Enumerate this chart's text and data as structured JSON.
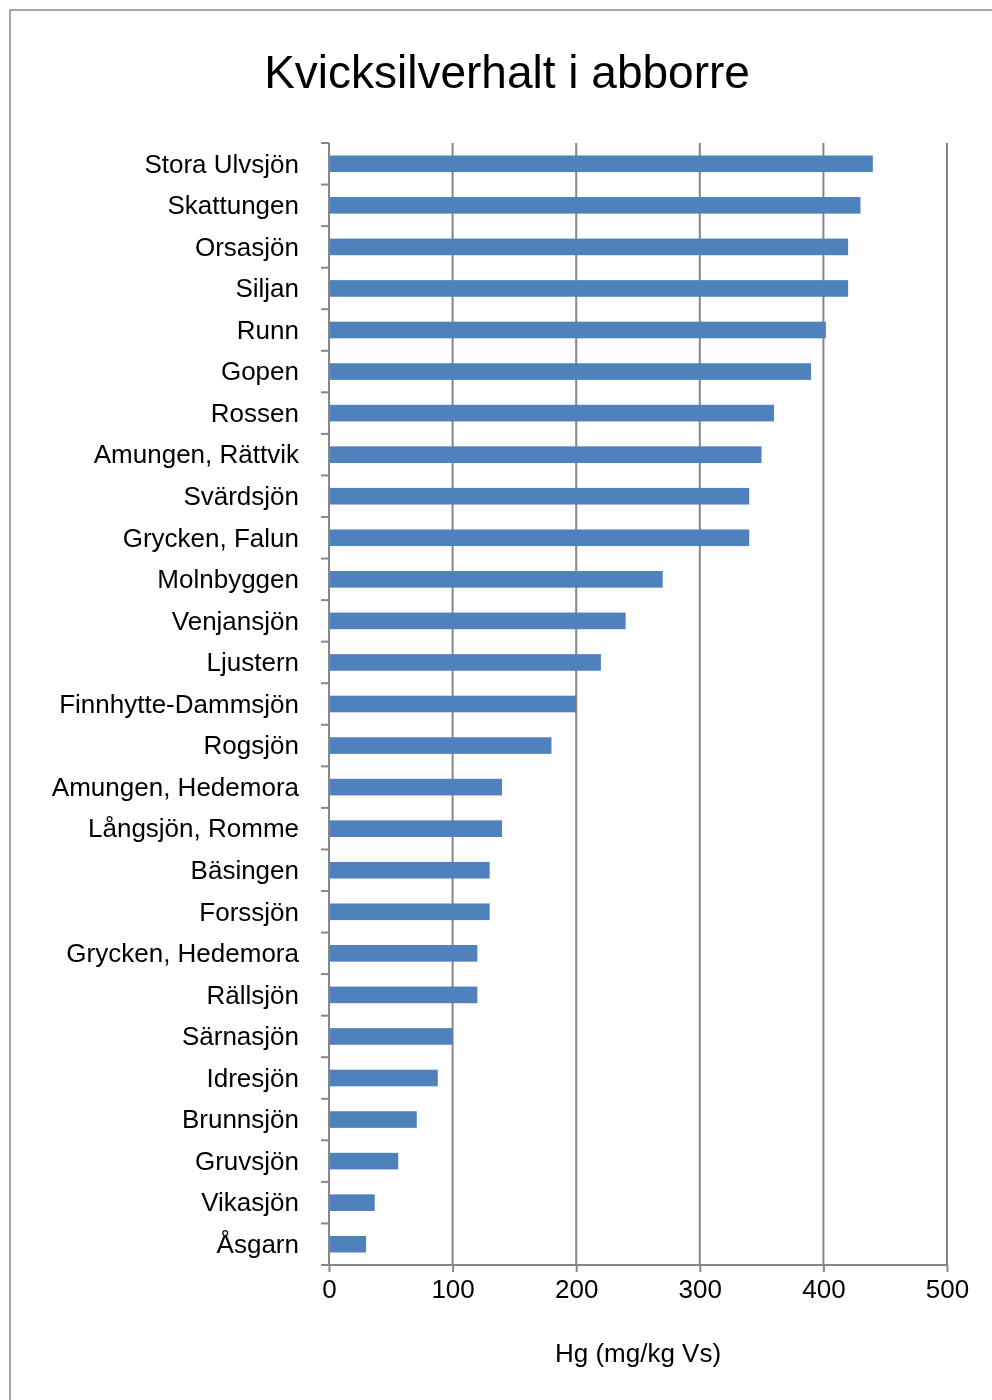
{
  "chart_data": {
    "type": "bar",
    "orientation": "horizontal",
    "title": "Kvicksilverhalt i abborre",
    "xlabel": "Hg (mg/kg Vs)",
    "categories": [
      "Stora Ulvsjön",
      "Skattungen",
      "Orsasjön",
      "Siljan",
      "Runn",
      "Gopen",
      "Rossen",
      "Amungen, Rättvik",
      "Svärdsjön",
      "Grycken, Falun",
      "Molnbyggen",
      "Venjansjön",
      "Ljustern",
      "Finnhytte-Dammsjön",
      "Rogsjön",
      "Amungen, Hedemora",
      "Långsjön, Romme",
      "Bäsingen",
      "Forssjön",
      "Grycken, Hedemora",
      "Rällsjön",
      "Särnasjön",
      "Idresjön",
      "Brunnsjön",
      "Gruvsjön",
      "Vikasjön",
      "Åsgarn"
    ],
    "values": [
      440,
      430,
      420,
      420,
      402,
      390,
      360,
      350,
      340,
      340,
      270,
      240,
      220,
      200,
      180,
      140,
      140,
      130,
      130,
      120,
      120,
      100,
      88,
      71,
      56,
      37,
      30
    ],
    "color": "#4f81bd",
    "xlim": [
      0,
      500
    ],
    "xticks": [
      0,
      100,
      200,
      300,
      400,
      500
    ],
    "grid": "x"
  }
}
